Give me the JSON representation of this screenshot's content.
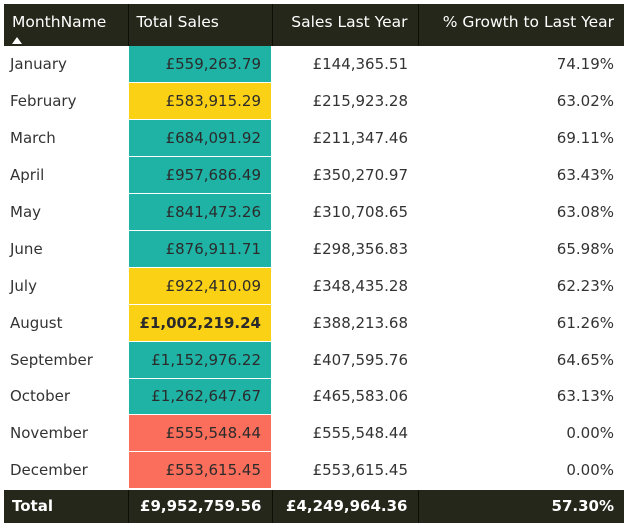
{
  "table": {
    "headers": [
      "MonthName",
      "Total Sales",
      "Sales Last Year",
      "% Growth to Last Year"
    ],
    "sort_indicator": "sort-ascending-icon",
    "rows": [
      {
        "month": "January",
        "total_sales": "£559,263.79",
        "sales_last_year": "£144,365.51",
        "growth": "74.19%",
        "highlight": "teal",
        "bold": false
      },
      {
        "month": "February",
        "total_sales": "£583,915.29",
        "sales_last_year": "£215,923.28",
        "growth": "63.02%",
        "highlight": "yellow",
        "bold": false
      },
      {
        "month": "March",
        "total_sales": "£684,091.92",
        "sales_last_year": "£211,347.46",
        "growth": "69.11%",
        "highlight": "teal",
        "bold": false
      },
      {
        "month": "April",
        "total_sales": "£957,686.49",
        "sales_last_year": "£350,270.97",
        "growth": "63.43%",
        "highlight": "teal",
        "bold": false
      },
      {
        "month": "May",
        "total_sales": "£841,473.26",
        "sales_last_year": "£310,708.65",
        "growth": "63.08%",
        "highlight": "teal",
        "bold": false
      },
      {
        "month": "June",
        "total_sales": "£876,911.71",
        "sales_last_year": "£298,356.83",
        "growth": "65.98%",
        "highlight": "teal",
        "bold": false
      },
      {
        "month": "July",
        "total_sales": "£922,410.09",
        "sales_last_year": "£348,435.28",
        "growth": "62.23%",
        "highlight": "yellow",
        "bold": false
      },
      {
        "month": "August",
        "total_sales": "£1,002,219.24",
        "sales_last_year": "£388,213.68",
        "growth": "61.26%",
        "highlight": "yellow",
        "bold": true
      },
      {
        "month": "September",
        "total_sales": "£1,152,976.22",
        "sales_last_year": "£407,595.76",
        "growth": "64.65%",
        "highlight": "teal",
        "bold": false
      },
      {
        "month": "October",
        "total_sales": "£1,262,647.67",
        "sales_last_year": "£465,583.06",
        "growth": "63.13%",
        "highlight": "teal",
        "bold": false
      },
      {
        "month": "November",
        "total_sales": "£555,548.44",
        "sales_last_year": "£555,548.44",
        "growth": "0.00%",
        "highlight": "red",
        "bold": false
      },
      {
        "month": "December",
        "total_sales": "£553,615.45",
        "sales_last_year": "£553,615.45",
        "growth": "0.00%",
        "highlight": "red",
        "bold": false
      }
    ],
    "total": {
      "label": "Total",
      "total_sales": "£9,952,759.56",
      "sales_last_year": "£4,249,964.36",
      "growth": "57.30%"
    }
  },
  "colors": {
    "header_bg": "#24271a",
    "teal": "#1fb3a6",
    "yellow": "#fbd116",
    "red": "#fb6e5b"
  }
}
